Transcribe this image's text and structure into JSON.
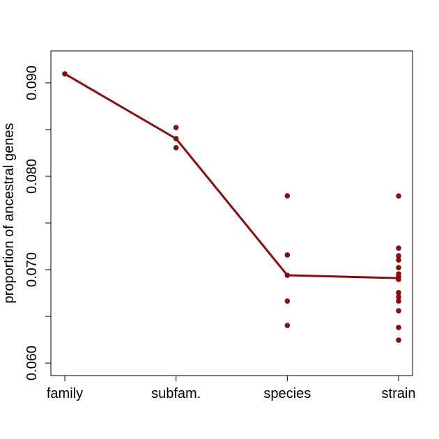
{
  "chart_data": {
    "type": "line",
    "ylabel": "proportion of ancestral genes",
    "categories": [
      "family",
      "subfam.",
      "species",
      "strain"
    ],
    "ylim": [
      0.05866,
      0.09343
    ],
    "yticks": [
      {
        "value": 0.06,
        "label": "0.060"
      },
      {
        "value": 0.065,
        "label": null
      },
      {
        "value": 0.07,
        "label": "0.070"
      },
      {
        "value": 0.075,
        "label": null
      },
      {
        "value": 0.08,
        "label": "0.080"
      },
      {
        "value": 0.085,
        "label": null
      },
      {
        "value": 0.09,
        "label": "0.090"
      }
    ],
    "series": [
      {
        "color": "#8b0a0a",
        "values": [
          0.09097,
          0.08403,
          0.0694,
          0.0691
        ]
      },
      {
        "color": "#8b0a0a",
        "x": [
          "family",
          "subfam.",
          "subfam.",
          "subfam.",
          "species",
          "species",
          "species",
          "species",
          "species",
          "strain",
          "strain",
          "strain",
          "strain",
          "strain",
          "strain",
          "strain",
          "strain",
          "strain",
          "strain",
          "strain",
          "strain",
          "strain",
          "strain"
        ],
        "values": [
          0.09097,
          0.08522,
          0.08403,
          0.08306,
          0.07791,
          0.07157,
          0.0694,
          0.06664,
          0.06403,
          0.0779,
          0.07231,
          0.07149,
          0.07104,
          0.07022,
          0.06955,
          0.06925,
          0.06896,
          0.06754,
          0.06709,
          0.06664,
          0.0656,
          0.06381,
          0.06246
        ]
      }
    ]
  }
}
